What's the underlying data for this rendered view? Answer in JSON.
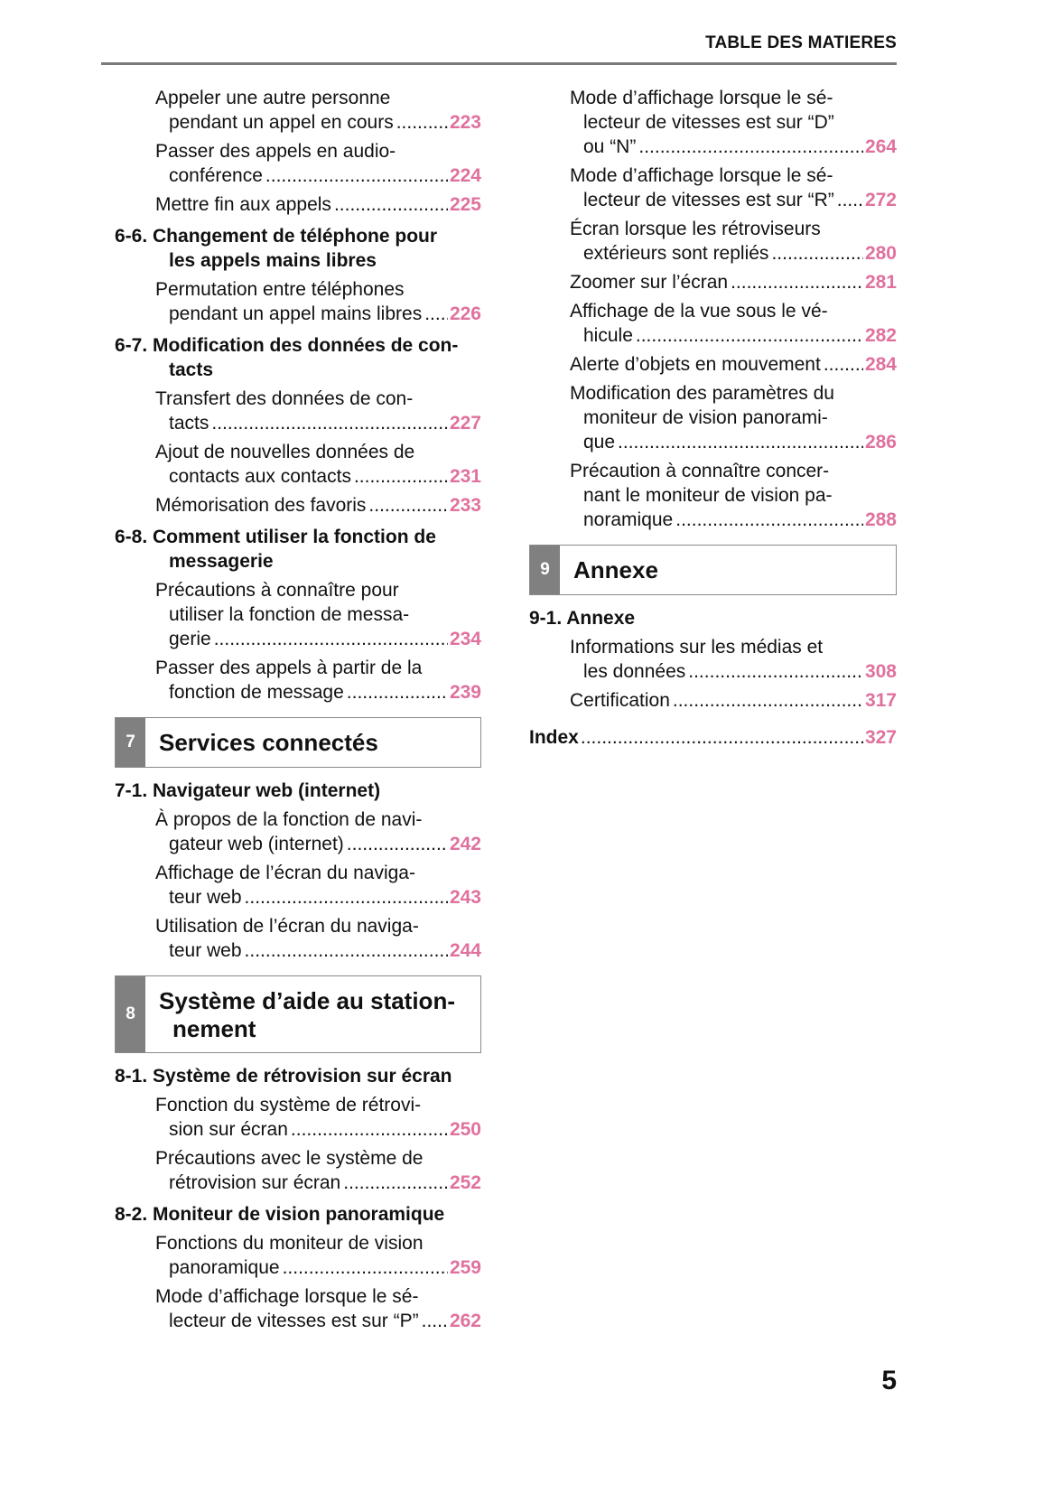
{
  "header": {
    "title": "TABLE DES MATIERES"
  },
  "page_number": "5",
  "colors": {
    "page_ref": "#e0719e",
    "section_tab": "#808080",
    "rule": "#7a7a7a"
  },
  "columns": [
    [
      {
        "type": "entry",
        "lines": [
          "Appeler une autre personne",
          "pendant un appel en cours"
        ],
        "page": "223"
      },
      {
        "type": "entry",
        "lines": [
          "Passer des appels en audio-",
          "conférence"
        ],
        "page": "224"
      },
      {
        "type": "entry",
        "lines": [
          "Mettre fin aux appels"
        ],
        "page": "225"
      },
      {
        "type": "heading",
        "lines": [
          "6-6. Changement de téléphone pour",
          "les appels mains libres"
        ]
      },
      {
        "type": "entry",
        "lines": [
          "Permutation entre téléphones",
          "pendant un appel mains libres"
        ],
        "page": "226"
      },
      {
        "type": "heading",
        "lines": [
          "6-7. Modification des données de con-",
          "tacts"
        ]
      },
      {
        "type": "entry",
        "lines": [
          "Transfert des données de con-",
          "tacts"
        ],
        "page": "227"
      },
      {
        "type": "entry",
        "lines": [
          "Ajout de nouvelles données de",
          "contacts aux contacts"
        ],
        "page": "231"
      },
      {
        "type": "entry",
        "lines": [
          "Mémorisation des favoris"
        ],
        "page": "233"
      },
      {
        "type": "heading",
        "lines": [
          "6-8. Comment utiliser la fonction de",
          "messagerie"
        ]
      },
      {
        "type": "entry",
        "lines": [
          "Précautions à connaître pour",
          "utiliser la fonction de messa-",
          "gerie"
        ],
        "page": "234"
      },
      {
        "type": "entry",
        "lines": [
          "Passer des appels à partir de la",
          "fonction de message"
        ],
        "page": "239"
      },
      {
        "type": "section",
        "number": "7",
        "lines": [
          "Services connectés"
        ]
      },
      {
        "type": "heading",
        "lines": [
          "7-1. Navigateur web (internet)"
        ]
      },
      {
        "type": "entry",
        "lines": [
          "À propos de la fonction de navi-",
          "gateur web (internet)"
        ],
        "page": "242"
      },
      {
        "type": "entry",
        "lines": [
          "Affichage de l’écran du naviga-",
          "teur web"
        ],
        "page": "243"
      },
      {
        "type": "entry",
        "lines": [
          "Utilisation de l’écran du naviga-",
          "teur web"
        ],
        "page": "244"
      },
      {
        "type": "section",
        "number": "8",
        "lines": [
          "Système d’aide au station-",
          "nement"
        ]
      },
      {
        "type": "heading",
        "lines": [
          "8-1. Système de rétrovision sur écran"
        ]
      },
      {
        "type": "entry",
        "lines": [
          "Fonction du système de rétrovi-",
          "sion sur écran"
        ],
        "page": "250"
      },
      {
        "type": "entry",
        "lines": [
          "Précautions avec le système de",
          "rétrovision sur écran"
        ],
        "page": "252"
      },
      {
        "type": "heading",
        "lines": [
          "8-2. Moniteur de vision panoramique"
        ]
      },
      {
        "type": "entry",
        "lines": [
          "Fonctions du moniteur de vision",
          "panoramique"
        ],
        "page": "259"
      },
      {
        "type": "entry",
        "lines": [
          "Mode d’affichage lorsque le sé-",
          "lecteur de vitesses est sur “P”"
        ],
        "page": "262"
      }
    ],
    [
      {
        "type": "entry",
        "lines": [
          "Mode d’affichage lorsque le sé-",
          "lecteur de vitesses est sur “D”",
          "ou “N”"
        ],
        "page": "264"
      },
      {
        "type": "entry",
        "lines": [
          "Mode d’affichage lorsque le sé-",
          "lecteur de vitesses est sur “R”"
        ],
        "page": "272"
      },
      {
        "type": "entry",
        "lines": [
          "Écran lorsque les rétroviseurs",
          "extérieurs sont repliés"
        ],
        "page": "280"
      },
      {
        "type": "entry",
        "lines": [
          "Zoomer sur l’écran"
        ],
        "page": "281"
      },
      {
        "type": "entry",
        "lines": [
          "Affichage de la vue sous le vé-",
          "hicule"
        ],
        "page": "282"
      },
      {
        "type": "entry",
        "lines": [
          "Alerte d’objets en mouvement"
        ],
        "page": "284"
      },
      {
        "type": "entry",
        "lines": [
          "Modification des paramètres du",
          "moniteur de vision panorami-",
          "que"
        ],
        "page": "286"
      },
      {
        "type": "entry",
        "lines": [
          "Précaution à connaître concer-",
          "nant le moniteur de vision pa-",
          "noramique"
        ],
        "page": "288"
      },
      {
        "type": "section",
        "number": "9",
        "lines": [
          "Annexe"
        ]
      },
      {
        "type": "heading",
        "lines": [
          "9-1. Annexe"
        ]
      },
      {
        "type": "entry",
        "lines": [
          "Informations sur les médias et",
          "les données"
        ],
        "page": "308"
      },
      {
        "type": "entry",
        "lines": [
          "Certification"
        ],
        "page": "317"
      },
      {
        "type": "index",
        "lines": [
          "Index"
        ],
        "page": "327"
      }
    ]
  ]
}
